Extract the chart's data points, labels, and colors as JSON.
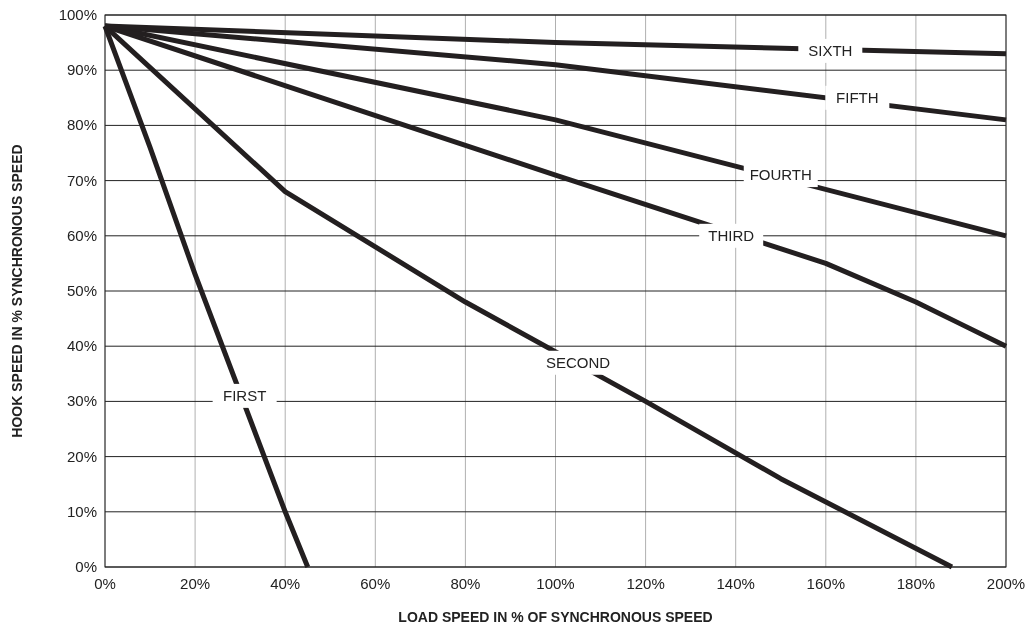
{
  "chart_data": {
    "type": "line",
    "xlabel": "LOAD SPEED IN % OF SYNCHRONOUS SPEED",
    "ylabel": "HOOK SPEED IN % SYNCHRONOUS SPEED",
    "xlim": [
      0,
      200
    ],
    "ylim": [
      0,
      100
    ],
    "xticks": [
      {
        "value": 0,
        "label": "0%"
      },
      {
        "value": 20,
        "label": "20%"
      },
      {
        "value": 40,
        "label": "40%"
      },
      {
        "value": 60,
        "label": "60%"
      },
      {
        "value": 80,
        "label": "80%"
      },
      {
        "value": 100,
        "label": "100%"
      },
      {
        "value": 120,
        "label": "120%"
      },
      {
        "value": 140,
        "label": "140%"
      },
      {
        "value": 160,
        "label": "160%"
      },
      {
        "value": 180,
        "label": "180%"
      },
      {
        "value": 200,
        "label": "200%"
      }
    ],
    "yticks": [
      {
        "value": 0,
        "label": "0%"
      },
      {
        "value": 10,
        "label": "10%"
      },
      {
        "value": 20,
        "label": "20%"
      },
      {
        "value": 30,
        "label": "30%"
      },
      {
        "value": 40,
        "label": "40%"
      },
      {
        "value": 50,
        "label": "50%"
      },
      {
        "value": 60,
        "label": "60%"
      },
      {
        "value": 70,
        "label": "70%"
      },
      {
        "value": 80,
        "label": "80%"
      },
      {
        "value": 90,
        "label": "90%"
      },
      {
        "value": 100,
        "label": "100%"
      }
    ],
    "grid": true,
    "line_style": "solid",
    "series": [
      {
        "color": "#231f20",
        "x": [
          0,
          10,
          20,
          40,
          45
        ],
        "values": [
          98,
          76,
          53,
          10,
          0
        ]
      },
      {
        "color": "#231f20",
        "x": [
          0,
          40,
          80,
          120,
          150,
          188
        ],
        "values": [
          98,
          68,
          48,
          30,
          16,
          0
        ]
      },
      {
        "color": "#231f20",
        "x": [
          0,
          100,
          160,
          180,
          190,
          200
        ],
        "values": [
          98,
          71,
          55,
          48,
          44,
          40
        ]
      },
      {
        "color": "#231f20",
        "x": [
          0,
          100,
          200
        ],
        "values": [
          98,
          81,
          60
        ]
      },
      {
        "color": "#231f20",
        "x": [
          0,
          100,
          200
        ],
        "values": [
          98,
          91,
          81
        ]
      },
      {
        "color": "#231f20",
        "x": [
          0,
          100,
          200
        ],
        "values": [
          98,
          95,
          93
        ]
      }
    ],
    "annotations": [
      {
        "text": "FIRST",
        "x": 31,
        "y": 31
      },
      {
        "text": "SECOND",
        "x": 105,
        "y": 37
      },
      {
        "text": "THIRD",
        "x": 139,
        "y": 60
      },
      {
        "text": "FOURTH",
        "x": 150,
        "y": 71
      },
      {
        "text": "FIFTH",
        "x": 167,
        "y": 85
      },
      {
        "text": "SIXTH",
        "x": 161,
        "y": 93.5
      }
    ]
  }
}
